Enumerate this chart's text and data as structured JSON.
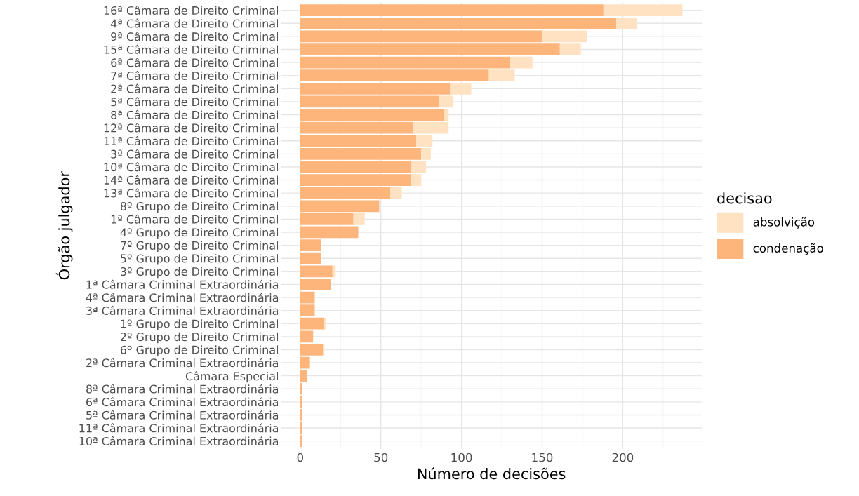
{
  "chart_data": {
    "type": "bar",
    "orientation": "horizontal",
    "stacked": true,
    "xlabel": "Número de decisões",
    "ylabel": "Órgão julgador",
    "legend_title": "decisao",
    "legend": "right",
    "grid": true,
    "categories": [
      "16ª Câmara de Direito Criminal",
      "4ª Câmara de Direito Criminal",
      "9ª Câmara de Direito Criminal",
      "15ª Câmara de Direito Criminal",
      "6ª Câmara de Direito Criminal",
      "7ª Câmara de Direito Criminal",
      "2ª Câmara de Direito Criminal",
      "5ª Câmara de Direito Criminal",
      "8ª Câmara de Direito Criminal",
      "12ª Câmara de Direito Criminal",
      "11ª Câmara de Direito Criminal",
      "3ª Câmara de Direito Criminal",
      "10ª Câmara de Direito Criminal",
      "14ª Câmara de Direito Criminal",
      "13ª Câmara de Direito Criminal",
      "8º Grupo de Direito Criminal",
      "1ª Câmara de Direito Criminal",
      "4º Grupo de Direito Criminal",
      "7º Grupo de Direito Criminal",
      "5º Grupo de Direito Criminal",
      "3º Grupo de Direito Criminal",
      "1ª Câmara Criminal Extraordinária",
      "4ª Câmara Criminal Extraordinária",
      "3ª Câmara Criminal Extraordinária",
      "1º Grupo de Direito Criminal",
      "2º Grupo de Direito Criminal",
      "6º Grupo de Direito Criminal",
      "2ª Câmara Criminal Extraordinária",
      "Câmara Especial",
      "8ª Câmara Criminal Extraordinária",
      "6ª Câmara Criminal Extraordinária",
      "5ª Câmara Criminal Extraordinária",
      "11ª Câmara Criminal Extraordinária",
      "10ª Câmara Criminal Extraordinária"
    ],
    "series": [
      {
        "name": "condenação",
        "color": "#fdb57c",
        "values": [
          188,
          196,
          150,
          161,
          130,
          117,
          93,
          86,
          89,
          70,
          72,
          75,
          69,
          69,
          56,
          49,
          33,
          36,
          13,
          13,
          20,
          19,
          9,
          9,
          15,
          8,
          14,
          6,
          4,
          1,
          1,
          1,
          1,
          1
        ]
      },
      {
        "name": "absolvição",
        "color": "#fee2c2",
        "values": [
          49,
          13,
          28,
          13,
          14,
          16,
          13,
          9,
          3,
          22,
          10,
          6,
          9,
          6,
          7,
          0,
          7,
          0,
          0,
          0,
          2,
          0,
          0,
          0,
          1,
          0,
          1,
          0,
          0,
          0,
          0,
          0,
          0,
          0
        ]
      }
    ],
    "xlim": [
      -12,
      249
    ],
    "xticks": [
      0,
      50,
      100,
      150,
      200
    ]
  }
}
